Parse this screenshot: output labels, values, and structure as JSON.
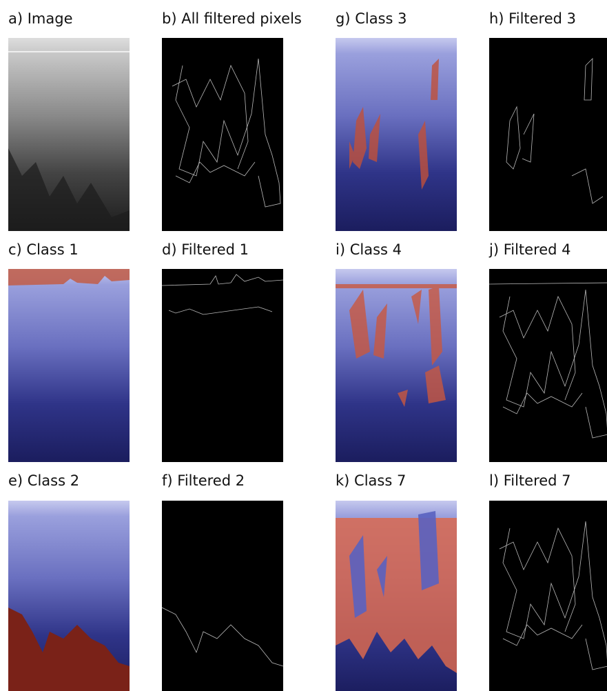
{
  "panels": [
    {
      "title": "a) Image"
    },
    {
      "title": "b) All filtered pixels"
    },
    {
      "title": "g) Class 3"
    },
    {
      "title": "h) Filtered 3"
    },
    {
      "title": "c) Class 1"
    },
    {
      "title": "d) Filtered 1"
    },
    {
      "title": "i) Class 4"
    },
    {
      "title": "j) Filtered 4"
    },
    {
      "title": "e) Class 2"
    },
    {
      "title": "f) Filtered 2"
    },
    {
      "title": "k) Class 7"
    },
    {
      "title": "l) Filtered 7"
    }
  ]
}
